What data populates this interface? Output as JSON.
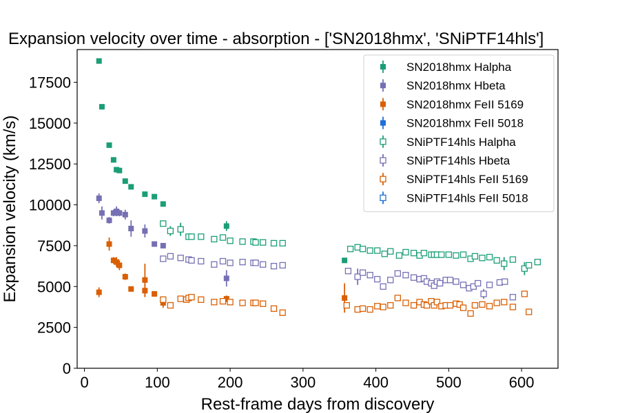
{
  "chart_data": {
    "type": "scatter",
    "title": "Expansion velocity over time - absorption - ['SN2018hmx', 'SNiPTF14hls']",
    "xlabel": "Rest-frame days from discovery",
    "ylabel": "Expansion velocity (km/s)",
    "xlim": [
      -10,
      650
    ],
    "ylim": [
      0,
      19500
    ],
    "xticks": [
      0,
      100,
      200,
      300,
      400,
      500,
      600
    ],
    "yticks": [
      0,
      2500,
      5000,
      7500,
      10000,
      12500,
      15000,
      17500
    ],
    "grid": false,
    "legend_position": "top-right",
    "series": [
      {
        "name": "SN2018hmx Halpha",
        "color": "#1b9e77",
        "marker": "filled-square",
        "points": [
          [
            20,
            18800
          ],
          [
            24,
            16000
          ],
          [
            34,
            13650
          ],
          [
            40,
            12750
          ],
          [
            44,
            12150
          ],
          [
            48,
            12100
          ],
          [
            56,
            11450
          ],
          [
            64,
            11100
          ],
          [
            83,
            10650
          ],
          [
            96,
            10500
          ],
          [
            108,
            10050
          ],
          [
            195,
            8700
          ],
          [
            357,
            6600
          ]
        ],
        "errors": [
          0,
          0,
          0,
          120,
          0,
          100,
          0,
          0,
          150,
          0,
          0,
          300,
          0
        ]
      },
      {
        "name": "SN2018hmx Hbeta",
        "color": "#7570b3",
        "marker": "filled-square",
        "points": [
          [
            20,
            10400
          ],
          [
            24,
            9500
          ],
          [
            34,
            9050
          ],
          [
            40,
            9500
          ],
          [
            44,
            9600
          ],
          [
            48,
            9500
          ],
          [
            56,
            9400
          ],
          [
            64,
            8550
          ],
          [
            83,
            8400
          ],
          [
            96,
            7600
          ],
          [
            108,
            7500
          ],
          [
            195,
            5500
          ]
        ],
        "errors": [
          300,
          400,
          200,
          200,
          300,
          200,
          300,
          500,
          400,
          100,
          100,
          500
        ]
      },
      {
        "name": "SN2018hmx FeII 5169",
        "color": "#d95f02",
        "marker": "filled-square",
        "points": [
          [
            20,
            4650
          ],
          [
            34,
            7600
          ],
          [
            40,
            6600
          ],
          [
            44,
            6500
          ],
          [
            48,
            6300
          ],
          [
            56,
            5600
          ],
          [
            64,
            4850
          ],
          [
            83,
            5400
          ],
          [
            83,
            4750
          ],
          [
            96,
            4550
          ],
          [
            108,
            4000
          ],
          [
            195,
            4250
          ],
          [
            357,
            4300
          ]
        ],
        "errors": [
          300,
          400,
          200,
          300,
          300,
          200,
          0,
          1000,
          400,
          100,
          300,
          200,
          900
        ]
      },
      {
        "name": "SN2018hmx FeII 5018",
        "color": "#1f6fd6",
        "marker": "filled-square",
        "points": [],
        "errors": []
      },
      {
        "name": "SNiPTF14hls Halpha",
        "color": "#1b9e77",
        "marker": "open-square",
        "points": [
          [
            108,
            8850
          ],
          [
            118,
            8400
          ],
          [
            132,
            8500
          ],
          [
            143,
            8050
          ],
          [
            147,
            8050
          ],
          [
            160,
            8050
          ],
          [
            178,
            7900
          ],
          [
            190,
            8000
          ],
          [
            200,
            7800
          ],
          [
            217,
            7750
          ],
          [
            232,
            7750
          ],
          [
            235,
            7700
          ],
          [
            245,
            7700
          ],
          [
            260,
            7650
          ],
          [
            272,
            7650
          ],
          [
            365,
            7300
          ],
          [
            375,
            7400
          ],
          [
            382,
            7300
          ],
          [
            392,
            7200
          ],
          [
            402,
            7200
          ],
          [
            412,
            7000
          ],
          [
            420,
            7150
          ],
          [
            432,
            6900
          ],
          [
            441,
            7100
          ],
          [
            452,
            7050
          ],
          [
            460,
            6900
          ],
          [
            466,
            7050
          ],
          [
            476,
            6950
          ],
          [
            480,
            6950
          ],
          [
            484,
            6950
          ],
          [
            490,
            6950
          ],
          [
            500,
            6950
          ],
          [
            510,
            6900
          ],
          [
            520,
            6950
          ],
          [
            530,
            6700
          ],
          [
            536,
            6850
          ],
          [
            546,
            6750
          ],
          [
            556,
            6800
          ],
          [
            566,
            6600
          ],
          [
            576,
            6400
          ],
          [
            588,
            6650
          ],
          [
            604,
            6100
          ],
          [
            610,
            6300
          ],
          [
            622,
            6500
          ]
        ],
        "errors": [
          0,
          300,
          400,
          0,
          0,
          0,
          0,
          0,
          0,
          0,
          0,
          0,
          0,
          0,
          0,
          0,
          0,
          0,
          0,
          0,
          0,
          0,
          0,
          0,
          0,
          0,
          0,
          0,
          0,
          0,
          0,
          0,
          0,
          0,
          0,
          0,
          0,
          0,
          0,
          400,
          0,
          400,
          0,
          0
        ]
      },
      {
        "name": "SNiPTF14hls Hbeta",
        "color": "#7570b3",
        "marker": "open-square",
        "points": [
          [
            108,
            6700
          ],
          [
            118,
            6850
          ],
          [
            132,
            6750
          ],
          [
            143,
            6650
          ],
          [
            147,
            6600
          ],
          [
            160,
            6550
          ],
          [
            178,
            6350
          ],
          [
            190,
            6550
          ],
          [
            200,
            6450
          ],
          [
            217,
            6500
          ],
          [
            232,
            6450
          ],
          [
            235,
            6450
          ],
          [
            245,
            6350
          ],
          [
            260,
            6250
          ],
          [
            272,
            6300
          ],
          [
            362,
            5950
          ],
          [
            375,
            5600
          ],
          [
            382,
            5850
          ],
          [
            392,
            5700
          ],
          [
            402,
            5450
          ],
          [
            410,
            5000
          ],
          [
            420,
            5400
          ],
          [
            430,
            5800
          ],
          [
            441,
            5700
          ],
          [
            452,
            5550
          ],
          [
            460,
            5450
          ],
          [
            466,
            5500
          ],
          [
            470,
            5300
          ],
          [
            476,
            5200
          ],
          [
            480,
            5050
          ],
          [
            484,
            5300
          ],
          [
            488,
            5200
          ],
          [
            496,
            5400
          ],
          [
            502,
            5400
          ],
          [
            510,
            5300
          ],
          [
            520,
            5100
          ],
          [
            528,
            4900
          ],
          [
            534,
            5000
          ],
          [
            540,
            5200
          ],
          [
            548,
            4550
          ],
          [
            556,
            5100
          ],
          [
            570,
            5250
          ],
          [
            577,
            5300
          ],
          [
            588,
            4350
          ]
        ],
        "errors": [
          0,
          0,
          0,
          0,
          0,
          0,
          0,
          0,
          0,
          0,
          0,
          0,
          0,
          0,
          0,
          0,
          500,
          0,
          0,
          0,
          0,
          0,
          0,
          0,
          0,
          0,
          0,
          0,
          0,
          0,
          0,
          0,
          0,
          0,
          0,
          0,
          0,
          0,
          0,
          300,
          0,
          0,
          0,
          0
        ]
      },
      {
        "name": "SNiPTF14hls FeII 5169",
        "color": "#d95f02",
        "marker": "open-square",
        "points": [
          [
            108,
            4200
          ],
          [
            118,
            3850
          ],
          [
            132,
            4250
          ],
          [
            140,
            4200
          ],
          [
            143,
            4300
          ],
          [
            147,
            4350
          ],
          [
            160,
            4200
          ],
          [
            178,
            4050
          ],
          [
            190,
            4100
          ],
          [
            200,
            4050
          ],
          [
            217,
            4000
          ],
          [
            232,
            4000
          ],
          [
            235,
            4000
          ],
          [
            245,
            3950
          ],
          [
            260,
            3650
          ],
          [
            272,
            3400
          ],
          [
            360,
            3850
          ],
          [
            375,
            3600
          ],
          [
            382,
            3650
          ],
          [
            392,
            3600
          ],
          [
            402,
            3800
          ],
          [
            410,
            3750
          ],
          [
            420,
            3850
          ],
          [
            430,
            4300
          ],
          [
            441,
            4000
          ],
          [
            452,
            3850
          ],
          [
            460,
            4050
          ],
          [
            466,
            3900
          ],
          [
            470,
            3850
          ],
          [
            476,
            4100
          ],
          [
            480,
            3850
          ],
          [
            484,
            4050
          ],
          [
            490,
            3800
          ],
          [
            496,
            3850
          ],
          [
            502,
            3850
          ],
          [
            510,
            3950
          ],
          [
            515,
            3900
          ],
          [
            520,
            3700
          ],
          [
            530,
            3350
          ],
          [
            536,
            3850
          ],
          [
            546,
            3900
          ],
          [
            556,
            3800
          ],
          [
            566,
            4000
          ],
          [
            576,
            4050
          ],
          [
            588,
            3750
          ],
          [
            604,
            4550
          ],
          [
            610,
            3450
          ]
        ],
        "errors": [
          0,
          0,
          0,
          0,
          0,
          0,
          0,
          0,
          0,
          0,
          0,
          0,
          0,
          0,
          0,
          0,
          0,
          0,
          0,
          0,
          0,
          0,
          0,
          0,
          0,
          0,
          0,
          0,
          0,
          0,
          0,
          0,
          0,
          0,
          0,
          0,
          0,
          0,
          0,
          0,
          0,
          0,
          0,
          0,
          0,
          0,
          0
        ]
      },
      {
        "name": "SNiPTF14hls FeII 5018",
        "color": "#1f6fd6",
        "marker": "open-square",
        "points": [],
        "errors": []
      }
    ]
  }
}
